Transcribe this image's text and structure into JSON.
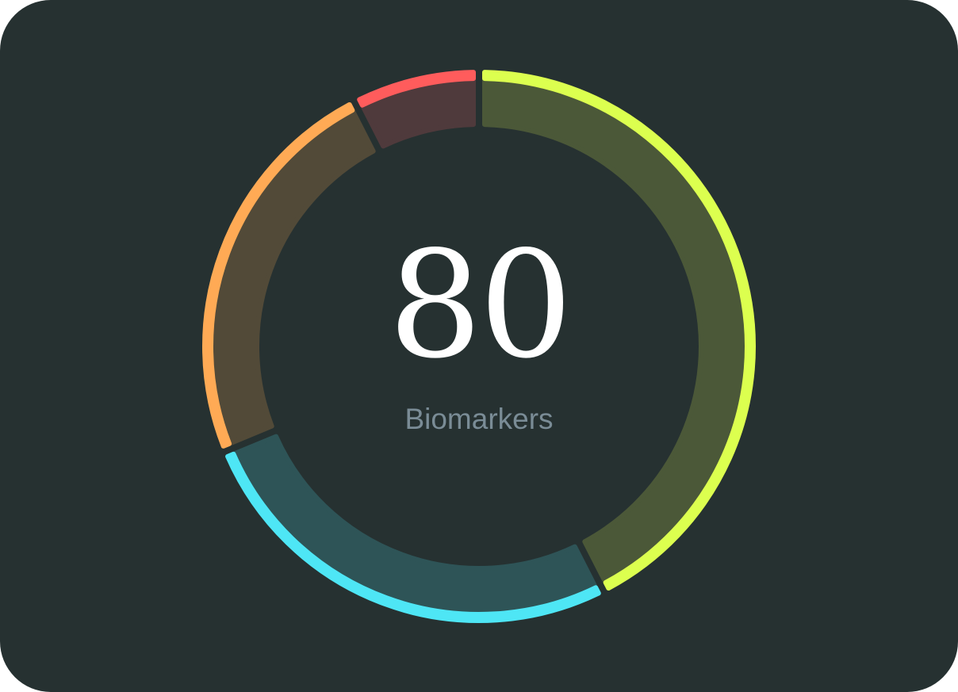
{
  "chart_data": {
    "type": "pie",
    "variant": "donut",
    "total_label": "80",
    "center_caption": "Biomarkers",
    "start": "top",
    "direction": "clockwise",
    "slices": [
      {
        "value": 34,
        "color": "#dcff4f",
        "fill": "#4b5838"
      },
      {
        "value": 21,
        "color": "#4ee6f5",
        "fill": "#2e5457"
      },
      {
        "value": 19,
        "color": "#ffaa55",
        "fill": "#524a38"
      },
      {
        "value": 6,
        "color": "#ff5c5c",
        "fill": "#4f3a3c"
      }
    ]
  },
  "theme": {
    "background": "#263131",
    "caption_color": "#7a8c96"
  }
}
